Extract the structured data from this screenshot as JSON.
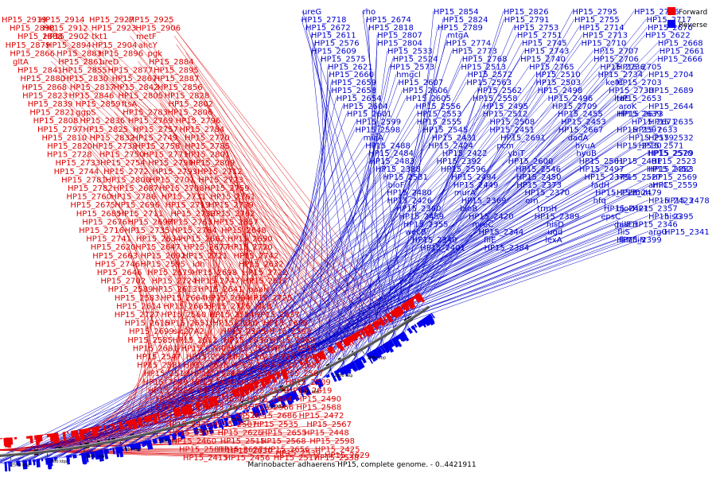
{
  "title": "Marinobacter adhaerens HP15, complete genome. - 0..4421911",
  "legend": {
    "forward": {
      "label": "Forward",
      "color": "#ee0000"
    },
    "reverse": {
      "label": "Reverse",
      "color": "#0000ee"
    }
  },
  "ruler_ticks": [
    "3000 kbp",
    "2950 kbp",
    "2900 kbp",
    "2850 kbp",
    "2800 kbp",
    "2750 kbp",
    "2700 kbp",
    "2650 kbp",
    "2600 kbp",
    "2550 kbp",
    "2500 kbp",
    "2450 kbp"
  ],
  "forward_labels": [
    "HP15_2925",
    "HP15_2927",
    "HP15_2914",
    "HP15_2919",
    "HP15_2906",
    "HP15_2923",
    "HP15_2912",
    "HP15_2898",
    "metF",
    "tkt1",
    "HP15_2902",
    "HP15_2888",
    "ahcY",
    "HP15_2904",
    "HP15_2894",
    "HP15_2879",
    "pgk",
    "HP15_2896",
    "HP15_2883",
    "HP15_2866",
    "HP15_2884",
    "ureD",
    "HP15_2861",
    "gltA",
    "HP15_2895",
    "HP15_2877",
    "HP15_2855",
    "HP15_2841",
    "HP15_2887",
    "HP15_2867",
    "HP15_2830",
    "HP15_2880",
    "HP15_2856",
    "HP15_2842",
    "HP15_2817",
    "HP15_2868",
    "HP15_2828",
    "HP15_2805",
    "HP15_2846",
    "HP15_2823",
    "HP15_2802",
    "ftsA",
    "HP15_2859",
    "HP15_2839",
    "HP15_2806",
    "HP15_2783",
    "ggpS",
    "HP15_2821",
    "HP15_2796",
    "HP15_2769",
    "HP15_2836",
    "HP15_2808",
    "HP15_2784",
    "HP15_2757",
    "HP15_2825",
    "HP15_2797",
    "HP15_2770",
    "HP15_2749",
    "HP15_2832",
    "HP15_2810",
    "HP15_2785",
    "HP15_2758",
    "HP15_2738",
    "HP15_2820",
    "HP15_2801",
    "HP15_2771",
    "HP15_2750",
    "HP15_2728",
    "HP15_2809",
    "HP15_2790",
    "HP15_2754",
    "HP15_2733",
    "HP15_2712",
    "HP15_2793",
    "HP15_2772",
    "HP15_2744",
    "HP15_2723",
    "HP15_2701",
    "HP15_2800",
    "HP15_2781",
    "HP15_2759",
    "HP15_2708",
    "HP15_2687",
    "HP15_2782",
    "HP15_2761",
    "HP15_2731",
    "HP15_2786",
    "HP15_2760",
    "HP15_2739",
    "HP15_2719",
    "HP15_2696",
    "HP15_2675",
    "HP15_2762",
    "HP15_2732",
    "HP15_2711",
    "HP15_2685",
    "HP15_2657",
    "HP15_2763",
    "HP15_2697",
    "HP15_2676",
    "HP15_2648",
    "HP15_2764",
    "HP15_2735",
    "HP15_2716",
    "HP15_2690",
    "HP15_2662",
    "HP15_2634",
    "HP15_2741",
    "HP15_2720",
    "HP15_2677",
    "HP15_2647",
    "HP15_2620",
    "HP15_2742",
    "HP15_2721",
    "HP15_2692",
    "HP15_2663",
    "HP15_2632",
    "idh",
    "HP15_2595",
    "HP15_2746",
    "HP15_2722",
    "HP15_2698",
    "HP15_2679",
    "HP15_2646",
    "HP15_2617",
    "HP15_2747",
    "HP15_2724",
    "HP15_2702",
    "paaH",
    "HP15_2641",
    "HP15_2613",
    "HP15_2589",
    "HP15_2725",
    "HP15_2694",
    "HP15_2664",
    "HP15_2583",
    "alkB",
    "HP15_2726",
    "HP15_2665",
    "HP15_2614",
    "HP15_2637",
    "HP15_2584",
    "HP15_2560",
    "HP15_2727",
    "HP15_2695",
    "HP15_2680",
    "HP15_2651",
    "HP15_2615",
    "HP15_2593",
    "HP15_2565",
    "slc27A2",
    "HP15_2699",
    "HP15_2669",
    "HP15_2636",
    "HP15_2612",
    "HP15_2585",
    "HP15_2557",
    "HP15_2528",
    "HP15_2700",
    "HP15_2681",
    "HP15_2643",
    "HP15_2616",
    "HP15_2577",
    "HP15_2547",
    "HP15_2682",
    "HP15_2645",
    "HP15_2618",
    "HP15_2581",
    "HP15_2587",
    "HP15_2564",
    "HP15_2536",
    "HP15_2519",
    "HP15_2509",
    "cmoB",
    "HP15_2683",
    "HP15_2649",
    "HP15_2619",
    "HP15_2578",
    "HP15_2548",
    "HP15_2520",
    "HP15_2490",
    "HP15_2684",
    "HP15_2650",
    "HP15_2624",
    "HP15_2588",
    "HP15_2566",
    "HP15_2534",
    "HP15_2505",
    "HP15_2472",
    "HP15_2686",
    "HP15_2652",
    "HP15_2625",
    "HP15_2567",
    "HP15_2535",
    "HP15_2507",
    "HP15_2476",
    "HP15_2448",
    "HP15_2655",
    "HP15_2626",
    "HP15_2591",
    "HP15_2598",
    "HP15_2568",
    "HP15_2515",
    "HP15_2460",
    "HP15_2425",
    "HP15_2656",
    "HP15_2627",
    "HP15_2581b",
    "HP15_2538",
    "HP15_2517",
    "HP15_2456",
    "HP15_2415",
    "HP15_2629",
    "HP15_2539",
    "HP15_2630"
  ],
  "reverse_labels": [
    "ureG",
    "rho",
    "HP15_2854",
    "HP15_2826",
    "HP15_2795",
    "HP15_2756",
    "HP15_2718",
    "HP15_2674",
    "HP15_2824",
    "HP15_2791",
    "HP15_2755",
    "HP15_2717",
    "HP15_2672",
    "HP15_2818",
    "HP15_2789",
    "HP15_2753",
    "HP15_2714",
    "HP15_2670",
    "HP15_2611",
    "HP15_2807",
    "mtgA",
    "HP15_2751",
    "HP15_2713",
    "HP15_2622",
    "HP15_2576",
    "HP15_2804",
    "HP15_2774",
    "HP15_2745",
    "HP15_2710",
    "HP15_2668",
    "HP15_2609",
    "HP15_2533",
    "HP15_2773",
    "HP15_2743",
    "HP15_2707",
    "HP15_2661",
    "HP15_2575",
    "HP15_2524",
    "HP15_2768",
    "HP15_2740",
    "HP15_2706",
    "HP15_2666",
    "HP15_2621",
    "HP15_2573",
    "HP15_2513",
    "HP15_2765",
    "HP15_2736",
    "HP15_2705",
    "HP15_2660",
    "hmgcl",
    "HP15_2572",
    "HP15_2510",
    "HP15_2734",
    "HP15_2704",
    "HP15_2659",
    "HP15_2607",
    "HP15_2563",
    "HP15_2503",
    "kefC",
    "HP15_2703",
    "HP15_2658",
    "HP15_2606",
    "HP15_2562",
    "HP15_2498",
    "HP15_2730",
    "HP15_2689",
    "HP15_2654",
    "HP15_2605",
    "HP15_2558",
    "HP15_2496",
    "ltaE",
    "HP15_2653",
    "HP15_2604",
    "HP15_2556",
    "HP15_2495",
    "HP15_2709",
    "aroK",
    "HP15_2644",
    "HP15_2601",
    "HP15_2553",
    "HP15_2512",
    "HP15_2455",
    "HP15_2673",
    "HP15_2639",
    "HP15_2599",
    "HP15_2555",
    "HP15_2508",
    "HP15_2453",
    "HP15_2671",
    "HP15_2635",
    "HP15_2598",
    "HP15_2545",
    "HP15_2451",
    "HP15_2667",
    "HP15_2633",
    "HP15_2597",
    "miaA",
    "HP15_2431",
    "HP15_2691",
    "dadA",
    "HP15_2579",
    "HP15_2532",
    "HP15_2488",
    "HP15_2424",
    "pcm",
    "hyuA",
    "HP15_2571",
    "HP15_2530",
    "HP15_2484",
    "HP15_2422",
    "ybiT",
    "hyuB",
    "HP15_2570",
    "HP15_2529",
    "HP15_2483",
    "HP15_2392",
    "HP15_2600",
    "HP15_2561",
    "HP15_2523",
    "HP15_2481",
    "HP15_2388",
    "HP15_2596",
    "HP15_2546",
    "HP15_2497",
    "HP15_2452",
    "HP15_2383",
    "HP15_2531",
    "HP15_2494",
    "HP15_2450",
    "HP15_2379",
    "HP15_2569",
    "HP15_2527",
    "bioF",
    "HP15_2449",
    "HP15_2373",
    "fadH",
    "HP15_2559",
    "amiC",
    "HP15_2480",
    "murA",
    "HP15_2370",
    "HP15_2550",
    "mutL",
    "HP15_2479",
    "HP15_2426",
    "HP15_2369",
    "orn",
    "hfq",
    "HP15_2478",
    "HP15_2423",
    "HP15_2360",
    "bioB",
    "trmH",
    "HP15_2421",
    "HP15_2357",
    "bioD",
    "HP15_2459",
    "HP15_2420",
    "HP15_2389",
    "epsC",
    "hisG",
    "HP15_2395",
    "HP15_2355",
    "mreC",
    "hisD",
    "galE",
    "HP15_2346",
    "hisC1",
    "wecB",
    "HP15_2344",
    "ugd",
    "fliS",
    "HP15_2341",
    "argG",
    "HP15_2340",
    "fliE",
    "lexA",
    "fliM",
    "fliN",
    "HP15_2399",
    "HP15_2401",
    "HP15_2384"
  ]
}
